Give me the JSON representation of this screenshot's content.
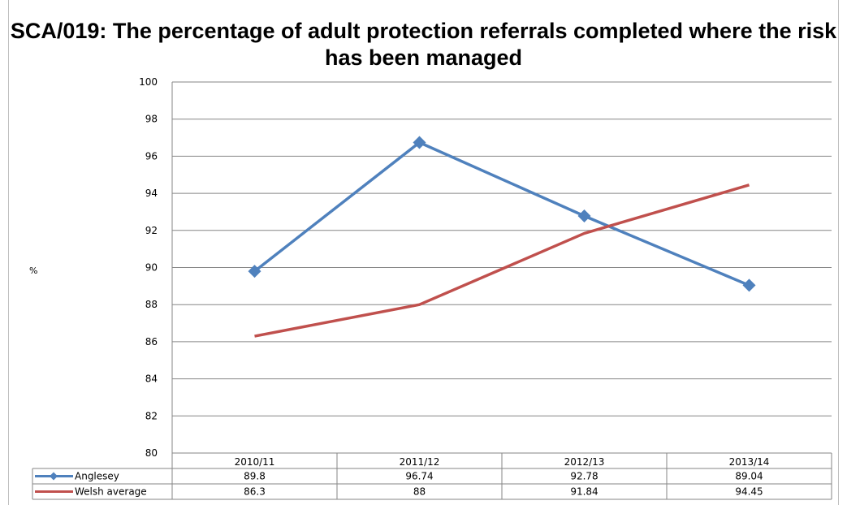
{
  "chart_data": {
    "type": "line",
    "title": "SCA/019: The percentage of adult protection referrals completed where the risk has been managed",
    "ylabel": "%",
    "xlabel": "",
    "categories": [
      "2010/11",
      "2011/12",
      "2012/13",
      "2013/14"
    ],
    "ylim": [
      80,
      100
    ],
    "yticks": [
      80,
      82,
      84,
      86,
      88,
      90,
      92,
      94,
      96,
      98,
      100
    ],
    "grid": true,
    "legend": "data-table",
    "series": [
      {
        "name": "Anglesey",
        "values": [
          89.8,
          96.74,
          92.78,
          89.04
        ],
        "color": "#4f81bd",
        "marker": "diamond"
      },
      {
        "name": "Welsh average",
        "values": [
          86.3,
          88,
          91.84,
          94.45
        ],
        "color": "#c0504d",
        "marker": "none"
      }
    ]
  }
}
